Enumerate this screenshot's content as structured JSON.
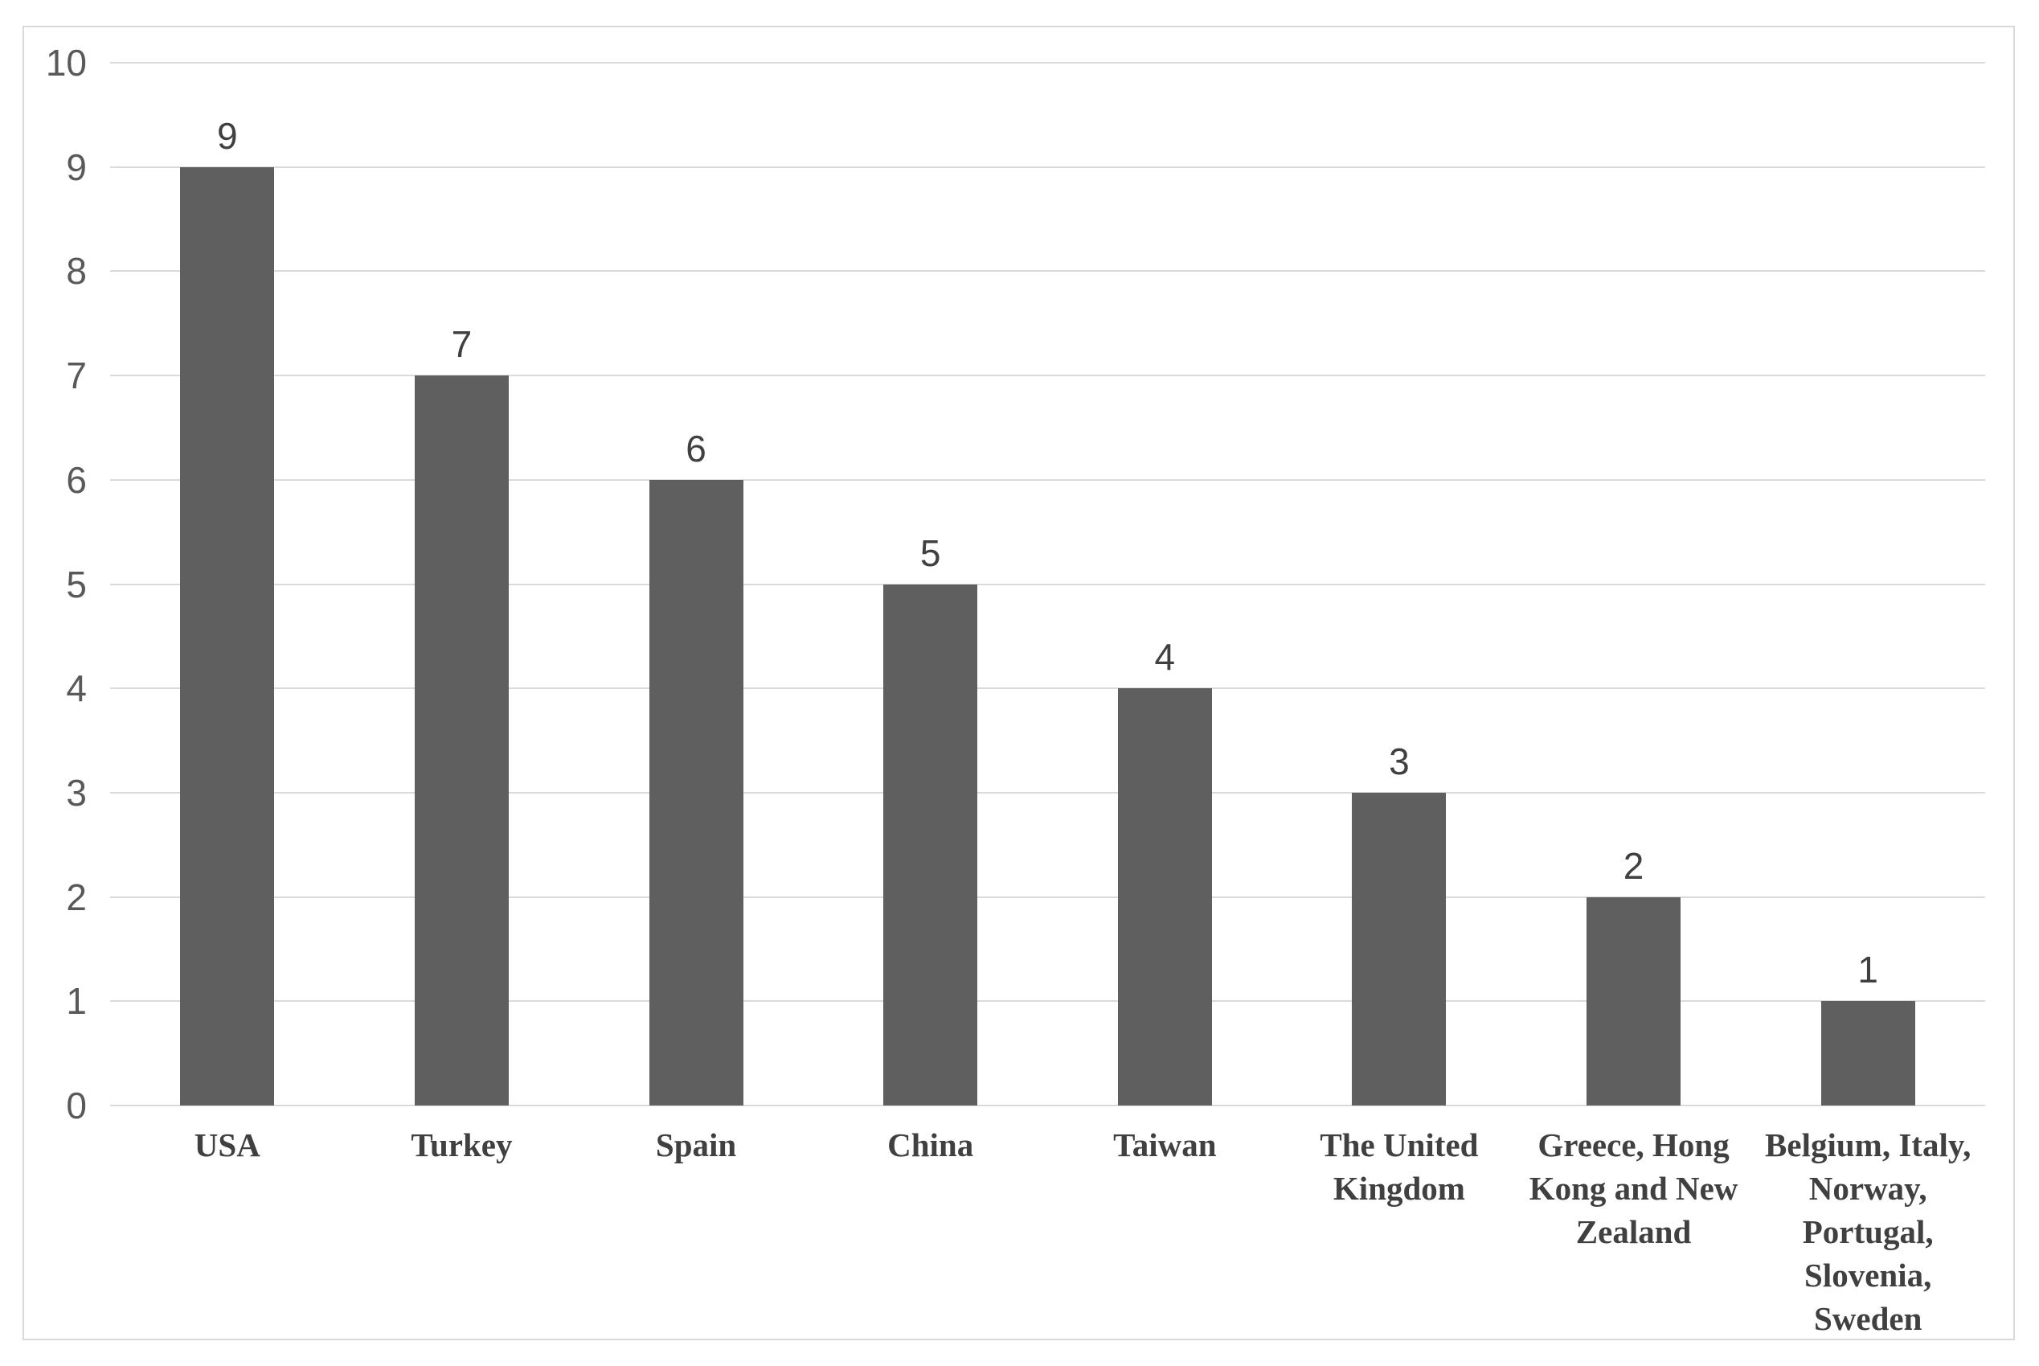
{
  "chart_data": {
    "type": "bar",
    "title": "",
    "xlabel": "",
    "ylabel": "",
    "categories": [
      "USA",
      "Turkey",
      "Spain",
      "China",
      "Taiwan",
      "The United\nKingdom",
      "Greece, Hong\nKong and New\nZealand",
      "Belgium, Italy,\nNorway,\nPortugal,\nSlovenia,\nSweden"
    ],
    "values": [
      9,
      7,
      6,
      5,
      4,
      3,
      2,
      1
    ],
    "data_labels": [
      "9",
      "7",
      "6",
      "5",
      "4",
      "3",
      "2",
      "1"
    ],
    "ylim": [
      0,
      10
    ],
    "yticks": [
      0,
      1,
      2,
      3,
      4,
      5,
      6,
      7,
      8,
      9,
      10
    ],
    "grid": "horizontal-on",
    "legend_position": "none",
    "colors": {
      "bar": "#5f5f5f",
      "gridline": "#dadada",
      "frame_border": "#d9d9d9",
      "tick_label": "#595959",
      "data_label": "#404040",
      "category_label": "#404040",
      "background": "#ffffff"
    }
  }
}
